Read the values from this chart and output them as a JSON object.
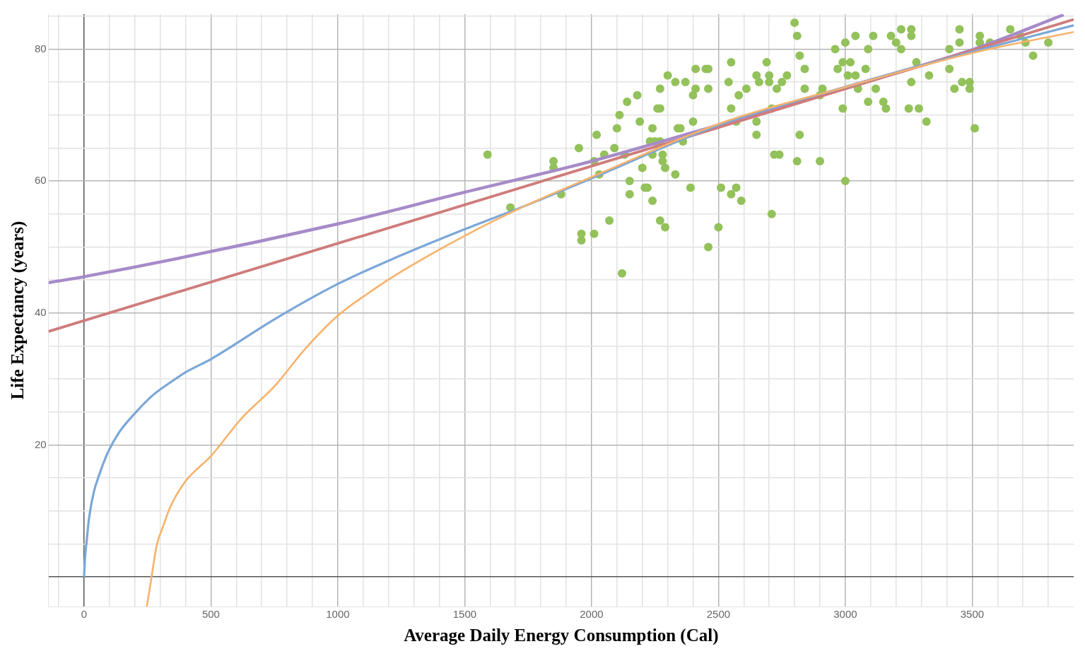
{
  "chart_data": {
    "type": "scatter",
    "xlabel": "Average Daily Energy Consumption (Cal)",
    "ylabel": "Life Expectancy (years)",
    "xlim": [
      -140,
      3900
    ],
    "ylim": [
      -4.5,
      85.3
    ],
    "xticks": [
      {
        "value": -100,
        "label": null
      },
      {
        "value": 0,
        "label": "0"
      },
      {
        "value": 100,
        "label": null
      },
      {
        "value": 200,
        "label": null
      },
      {
        "value": 300,
        "label": null
      },
      {
        "value": 400,
        "label": null
      },
      500,
      {
        "value": 600,
        "label": null
      },
      {
        "value": 700,
        "label": null
      },
      {
        "value": 800,
        "label": null
      },
      {
        "value": 900,
        "label": null
      },
      1000,
      {
        "value": 1100,
        "label": null
      },
      {
        "value": 1200,
        "label": null
      },
      {
        "value": 1300,
        "label": null
      },
      {
        "value": 1400,
        "label": null
      },
      1500,
      {
        "value": 1600,
        "label": null
      },
      {
        "value": 1700,
        "label": null
      },
      {
        "value": 1800,
        "label": null
      },
      {
        "value": 1900,
        "label": null
      },
      2000,
      {
        "value": 2100,
        "label": null
      },
      {
        "value": 2200,
        "label": null
      },
      {
        "value": 2300,
        "label": null
      },
      {
        "value": 2400,
        "label": null
      },
      2500,
      {
        "value": 2600,
        "label": null
      },
      {
        "value": 2700,
        "label": null
      },
      {
        "value": 2800,
        "label": null
      },
      {
        "value": 2900,
        "label": null
      },
      3000,
      {
        "value": 3100,
        "label": null
      },
      {
        "value": 3200,
        "label": null
      },
      {
        "value": 3300,
        "label": null
      },
      {
        "value": 3400,
        "label": null
      },
      3500,
      {
        "value": 3600,
        "label": null
      },
      {
        "value": 3700,
        "label": null
      },
      {
        "value": 3800,
        "label": null
      }
    ],
    "yticks": [
      {
        "value": 0,
        "label": null
      },
      {
        "value": 5,
        "label": null
      },
      {
        "value": 10,
        "label": null
      },
      {
        "value": 15,
        "label": null
      },
      20,
      {
        "value": 25,
        "label": null
      },
      {
        "value": 30,
        "label": null
      },
      {
        "value": 35,
        "label": null
      },
      40,
      {
        "value": 45,
        "label": null
      },
      {
        "value": 50,
        "label": null
      },
      {
        "value": 55,
        "label": null
      },
      60,
      {
        "value": 65,
        "label": null
      },
      {
        "value": 70,
        "label": null
      },
      {
        "value": 75,
        "label": null
      },
      80,
      {
        "value": 85,
        "label": null
      }
    ],
    "grid": true,
    "legend": false,
    "series": [
      {
        "type": "scatter",
        "marker": "circle",
        "color": "#93c15a",
        "x": [
          1590,
          1680,
          1850,
          1850,
          1880,
          1950,
          1960,
          1960,
          2010,
          2020,
          2010,
          2030,
          2050,
          2070,
          2090,
          2100,
          2110,
          2120,
          2130,
          2140,
          2150,
          2150,
          2180,
          2190,
          2200,
          2210,
          2220,
          2230,
          2240,
          2240,
          2240,
          2250,
          2260,
          2270,
          2270,
          2270,
          2270,
          2280,
          2280,
          2290,
          2290,
          2300,
          2330,
          2330,
          2340,
          2350,
          2360,
          2370,
          2390,
          2400,
          2400,
          2410,
          2410,
          2450,
          2460,
          2460,
          2460,
          2500,
          2510,
          2540,
          2550,
          2550,
          2550,
          2570,
          2570,
          2580,
          2590,
          2610,
          2650,
          2650,
          2650,
          2660,
          2690,
          2700,
          2700,
          2710,
          2710,
          2720,
          2730,
          2740,
          2750,
          2770,
          2800,
          2810,
          2820,
          2820,
          2810,
          2840,
          2840,
          2900,
          2900,
          2910,
          2960,
          2970,
          2990,
          3000,
          2990,
          3000,
          3010,
          3020,
          3040,
          3040,
          3050,
          3080,
          3090,
          3090,
          3110,
          3120,
          3150,
          3160,
          3180,
          3200,
          3220,
          3220,
          3260,
          3260,
          3260,
          3250,
          3280,
          3290,
          3320,
          3330,
          3410,
          3430,
          3410,
          3450,
          3450,
          3460,
          3490,
          3490,
          3510,
          3530,
          3530,
          3570,
          3650,
          3690,
          3710,
          3740,
          3800
        ],
        "values": [
          64,
          56,
          63,
          62,
          58,
          65,
          52,
          51,
          52,
          67,
          63,
          61,
          64,
          54,
          65,
          68,
          70,
          46,
          64,
          72,
          60,
          58,
          73,
          69,
          62,
          59,
          59,
          66,
          68,
          57,
          64,
          66,
          71,
          71,
          74,
          54,
          66,
          64,
          63,
          53,
          62,
          76,
          75,
          61,
          68,
          68,
          66,
          75,
          59,
          69,
          73,
          77,
          74,
          77,
          77,
          50,
          74,
          53,
          59,
          75,
          78,
          58,
          71,
          59,
          69,
          73,
          57,
          74,
          76,
          67,
          69,
          75,
          78,
          76,
          75,
          55,
          71,
          64,
          74,
          64,
          75,
          76,
          84,
          82,
          79,
          67,
          63,
          74,
          77,
          63,
          73,
          74,
          80,
          77,
          78,
          81,
          71,
          60,
          76,
          78,
          82,
          76,
          74,
          77,
          72,
          80,
          82,
          74,
          72,
          71,
          82,
          81,
          83,
          80,
          83,
          82,
          75,
          71,
          78,
          71,
          69,
          76,
          77,
          74,
          80,
          83,
          81,
          75,
          75,
          74,
          68,
          82,
          81,
          81,
          83,
          82,
          81,
          79,
          81
        ]
      },
      {
        "type": "line",
        "marker": "none",
        "color": "#a68bc8",
        "x": [
          -140,
          0,
          1000,
          1500,
          2000,
          2500,
          3000,
          3500,
          3860
        ],
        "values": [
          44.6,
          45.5,
          53.5,
          58.3,
          63,
          68.5,
          74.2,
          79.9,
          85.2
        ]
      },
      {
        "type": "line",
        "marker": "none",
        "color": "#d07c7c",
        "x": [
          -140,
          3900
        ],
        "values": [
          37.2,
          84.5
        ]
      },
      {
        "type": "line",
        "marker": "none",
        "color": "#7ba7d8",
        "x": [
          0,
          3,
          11,
          20,
          38,
          60,
          93,
          140,
          203,
          270,
          341,
          400,
          500,
          753,
          1000,
          1247,
          1500,
          1742,
          2000,
          2503,
          3005,
          3500,
          3900
        ],
        "values": [
          0,
          2.5,
          5.7,
          9,
          12.8,
          15.5,
          18.8,
          22,
          24.9,
          27.5,
          29.5,
          31,
          33,
          39.1,
          44.4,
          48.7,
          52.7,
          56.3,
          60.4,
          68.5,
          74.3,
          79.6,
          83.6
        ]
      },
      {
        "type": "line",
        "marker": "none",
        "color": "#f7b26b",
        "x": [
          247,
          260,
          286,
          310,
          341,
          400,
          500,
          620,
          753,
          870,
          1000,
          1120,
          1247,
          1500,
          1742,
          2000,
          2503,
          3005,
          3500,
          3900
        ],
        "values": [
          -4.5,
          -1.5,
          4.7,
          7.5,
          10.7,
          14.5,
          18.3,
          24,
          29,
          34.5,
          39.6,
          43,
          46.2,
          51.7,
          56.3,
          60.6,
          68.7,
          74.3,
          79.4,
          82.6
        ]
      }
    ]
  }
}
